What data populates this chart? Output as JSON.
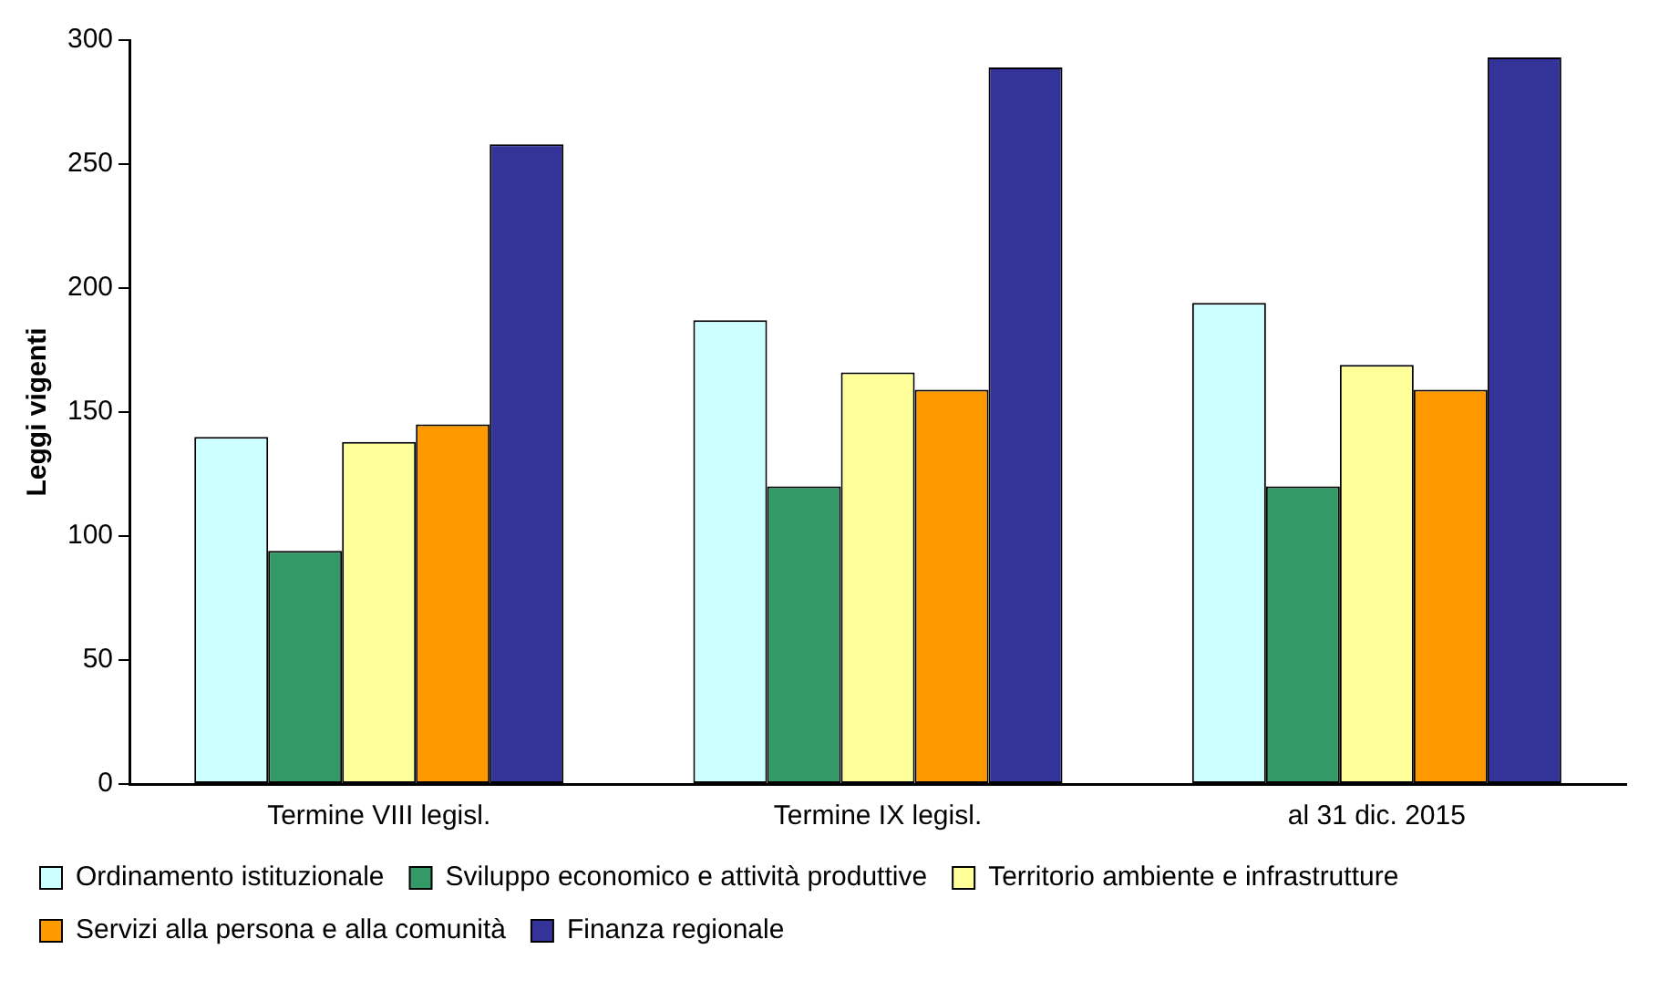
{
  "chart_data": {
    "type": "bar",
    "ylabel": "Leggi vigenti",
    "categories": [
      "Termine VIII legisl.",
      "Termine IX legisl.",
      "al 31 dic. 2015"
    ],
    "series": [
      {
        "name": "Ordinamento istituzionale",
        "color": "#ccffff",
        "values": [
          140,
          187,
          194
        ]
      },
      {
        "name": "Sviluppo economico e attività produttive",
        "color": "#339966",
        "values": [
          94,
          120,
          120
        ]
      },
      {
        "name": "Territorio ambiente e infrastrutture",
        "color": "#ffff99",
        "values": [
          138,
          166,
          169
        ]
      },
      {
        "name": "Servizi alla persona e alla comunità",
        "color": "#ff9900",
        "values": [
          145,
          159,
          159
        ]
      },
      {
        "name": "Finanza regionale",
        "color": "#333399",
        "values": [
          258,
          289,
          293
        ]
      }
    ],
    "ylim": [
      0,
      300
    ],
    "yticks": [
      0,
      50,
      100,
      150,
      200,
      250,
      300
    ],
    "grid": false,
    "legend": "bottom"
  }
}
